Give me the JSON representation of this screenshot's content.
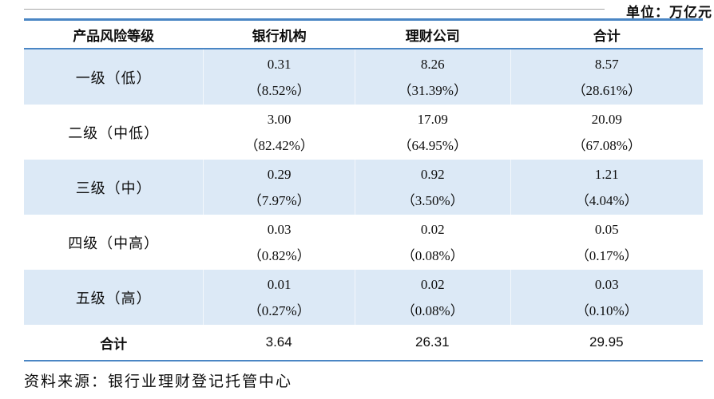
{
  "unit_label": "单位：万亿元",
  "source": "资料来源：银行业理财登记托管中心",
  "colors": {
    "line_blue": "#4a86c4",
    "row_highlight": "#dce9f6",
    "text": "#0d0d0d"
  },
  "table": {
    "headers": {
      "risk_level": "产品风险等级",
      "bank": "银行机构",
      "wealth_co": "理财公司",
      "total": "合计"
    },
    "rows": [
      {
        "label": "一级（低）",
        "bank": "0.31",
        "bank_pct": "（8.52%）",
        "wealth": "8.26",
        "wealth_pct": "（31.39%）",
        "total": "8.57",
        "total_pct": "（28.61%）"
      },
      {
        "label": "二级（中低）",
        "bank": "3.00",
        "bank_pct": "（82.42%）",
        "wealth": "17.09",
        "wealth_pct": "（64.95%）",
        "total": "20.09",
        "total_pct": "（67.08%）"
      },
      {
        "label": "三级（中）",
        "bank": "0.29",
        "bank_pct": "（7.97%）",
        "wealth": "0.92",
        "wealth_pct": "（3.50%）",
        "total": "1.21",
        "total_pct": "（4.04%）"
      },
      {
        "label": "四级（中高）",
        "bank": "0.03",
        "bank_pct": "（0.82%）",
        "wealth": "0.02",
        "wealth_pct": "（0.08%）",
        "total": "0.05",
        "total_pct": "（0.17%）"
      },
      {
        "label": "五级（高）",
        "bank": "0.01",
        "bank_pct": "（0.27%）",
        "wealth": "0.02",
        "wealth_pct": "（0.08%）",
        "total": "0.03",
        "total_pct": "（0.10%）"
      }
    ],
    "total_row": {
      "label": "合计",
      "bank": "3.64",
      "wealth": "26.31",
      "total": "29.95"
    }
  }
}
